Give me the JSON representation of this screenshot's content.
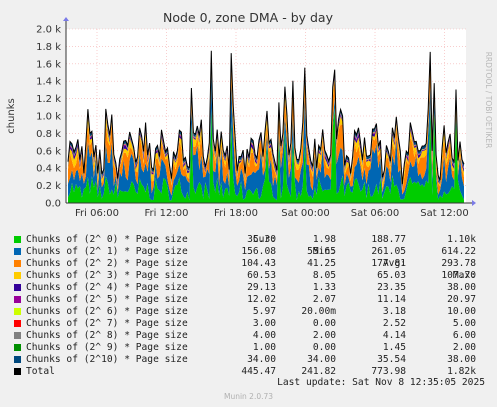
{
  "chart_data": {
    "type": "area",
    "title": "Node 0, zone DMA - by day",
    "ylabel": "chunks",
    "side_label": "RRDTOOL / TOBI OETIKER",
    "ylim": [
      0,
      2000
    ],
    "y_ticks": [
      {
        "value": 0,
        "label": "0.0"
      },
      {
        "value": 200,
        "label": "0.2 k"
      },
      {
        "value": 400,
        "label": "0.4 k"
      },
      {
        "value": 600,
        "label": "0.6 k"
      },
      {
        "value": 800,
        "label": "0.8 k"
      },
      {
        "value": 1000,
        "label": "1.0 k"
      },
      {
        "value": 1200,
        "label": "1.2 k"
      },
      {
        "value": 1400,
        "label": "1.4 k"
      },
      {
        "value": 1600,
        "label": "1.6 k"
      },
      {
        "value": 1800,
        "label": "1.8 k"
      },
      {
        "value": 2000,
        "label": "2.0 k"
      }
    ],
    "x_ticks": [
      "Fri 06:00",
      "Fri 12:00",
      "Fri 18:00",
      "Sat 00:00",
      "Sat 06:00",
      "Sat 12:00"
    ],
    "grid": true,
    "legend_columns": [
      "Cur:",
      "Min:",
      "Avg:",
      "Max:"
    ],
    "series": [
      {
        "name": "Chunks of (2^ 0) * Page size",
        "color": "#00cc00",
        "cur": "35.30",
        "min": "1.98",
        "avg": "188.77",
        "max": "1.10k"
      },
      {
        "name": "Chunks of (2^ 1) * Page size",
        "color": "#0066b3",
        "cur": "156.08",
        "min": "55.65",
        "avg": "261.05",
        "max": "614.22"
      },
      {
        "name": "Chunks of (2^ 2) * Page size",
        "color": "#ff8000",
        "cur": "104.43",
        "min": "41.25",
        "avg": "177.81",
        "max": "293.78"
      },
      {
        "name": "Chunks of (2^ 3) * Page size",
        "color": "#ffcc00",
        "cur": "60.53",
        "min": "8.05",
        "avg": "65.03",
        "max": "107.70"
      },
      {
        "name": "Chunks of (2^ 4) * Page size",
        "color": "#330099",
        "cur": "29.13",
        "min": "1.33",
        "avg": "23.35",
        "max": "38.00"
      },
      {
        "name": "Chunks of (2^ 5) * Page size",
        "color": "#990099",
        "cur": "12.02",
        "min": "2.07",
        "avg": "11.14",
        "max": "20.97"
      },
      {
        "name": "Chunks of (2^ 6) * Page size",
        "color": "#ccff00",
        "cur": "5.97",
        "min": "20.00m",
        "avg": "3.18",
        "max": "10.00"
      },
      {
        "name": "Chunks of (2^ 7) * Page size",
        "color": "#ff0000",
        "cur": "3.00",
        "min": "0.00",
        "avg": "2.52",
        "max": "5.00"
      },
      {
        "name": "Chunks of (2^ 8) * Page size",
        "color": "#808080",
        "cur": "4.00",
        "min": "2.00",
        "avg": "4.14",
        "max": "6.00"
      },
      {
        "name": "Chunks of (2^ 9) * Page size",
        "color": "#008f00",
        "cur": "1.00",
        "min": "0.00",
        "avg": "1.45",
        "max": "2.00"
      },
      {
        "name": "Chunks of (2^10) * Page size",
        "color": "#00487d",
        "cur": "34.00",
        "min": "34.00",
        "avg": "35.54",
        "max": "38.00"
      },
      {
        "name": "Total",
        "color": "#000000",
        "cur": "445.47",
        "min": "241.82",
        "avg": "773.98",
        "max": "1.82k"
      }
    ]
  },
  "footer": {
    "last_update": "Last update: Sat Nov  8 12:35:05 2025",
    "generator": "Munin 2.0.73"
  }
}
